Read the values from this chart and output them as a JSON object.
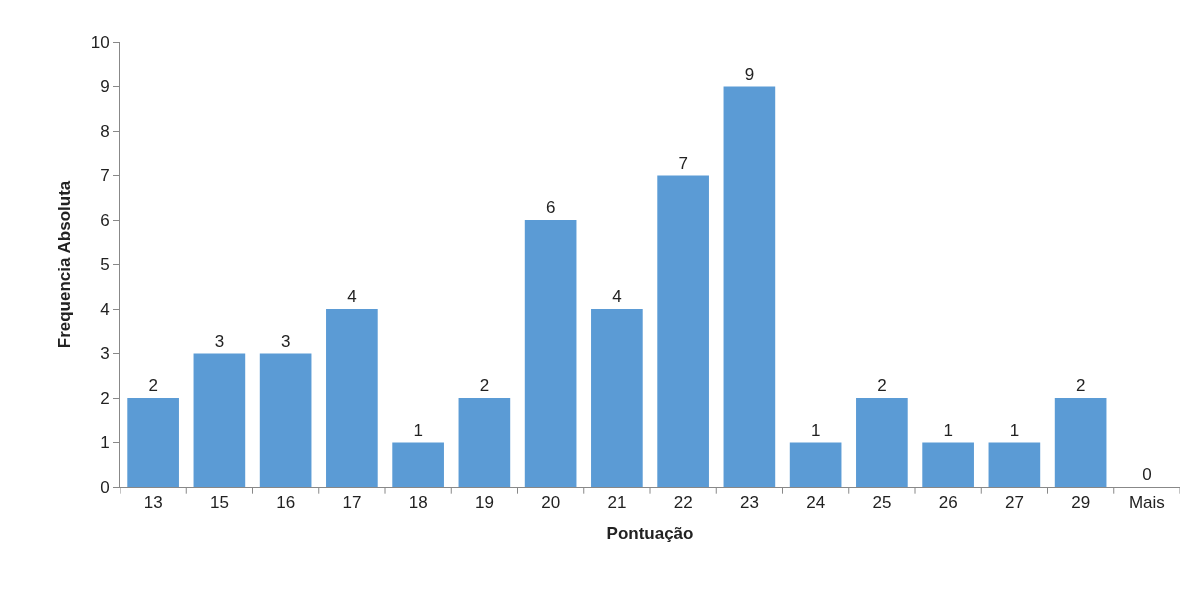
{
  "chart_data": {
    "type": "bar",
    "xlabel": "Pontuação",
    "ylabel": "Frequencia Absoluta",
    "categories": [
      "13",
      "15",
      "16",
      "17",
      "18",
      "19",
      "20",
      "21",
      "22",
      "23",
      "24",
      "25",
      "26",
      "27",
      "29",
      "Mais"
    ],
    "values": [
      2,
      3,
      3,
      4,
      1,
      2,
      6,
      4,
      7,
      9,
      1,
      2,
      1,
      1,
      2,
      0
    ],
    "color": "#5b9bd5",
    "ylim": [
      0,
      10
    ],
    "yticks": [
      0,
      1,
      2,
      3,
      4,
      5,
      6,
      7,
      8,
      9,
      10
    ],
    "data_labels": true
  }
}
